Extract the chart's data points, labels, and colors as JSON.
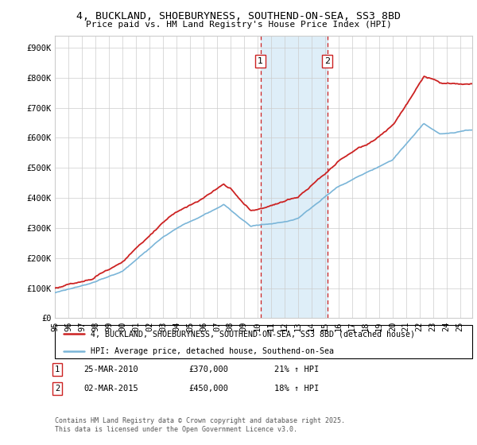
{
  "title_line1": "4, BUCKLAND, SHOEBURYNESS, SOUTHEND-ON-SEA, SS3 8BD",
  "title_line2": "Price paid vs. HM Land Registry's House Price Index (HPI)",
  "ylabel_ticks": [
    "£0",
    "£100K",
    "£200K",
    "£300K",
    "£400K",
    "£500K",
    "£600K",
    "£700K",
    "£800K",
    "£900K"
  ],
  "ytick_vals": [
    0,
    100000,
    200000,
    300000,
    400000,
    500000,
    600000,
    700000,
    800000,
    900000
  ],
  "ylim": [
    0,
    940000
  ],
  "xlim_start": 1995.0,
  "xlim_end": 2025.9,
  "sale1_x": 2010.23,
  "sale1_y": 370000,
  "sale1_label": "1",
  "sale1_date": "25-MAR-2010",
  "sale1_price": "£370,000",
  "sale1_hpi": "21% ↑ HPI",
  "sale2_x": 2015.17,
  "sale2_y": 450000,
  "sale2_label": "2",
  "sale2_date": "02-MAR-2015",
  "sale2_price": "£450,000",
  "sale2_hpi": "18% ↑ HPI",
  "legend_line1": "4, BUCKLAND, SHOEBURYNESS, SOUTHEND-ON-SEA, SS3 8BD (detached house)",
  "legend_line2": "HPI: Average price, detached house, Southend-on-Sea",
  "footer": "Contains HM Land Registry data © Crown copyright and database right 2025.\nThis data is licensed under the Open Government Licence v3.0.",
  "hpi_color": "#7ab5d8",
  "price_color": "#cc2222",
  "shading_color": "#deeef8",
  "vline_color": "#cc2222",
  "background_color": "#ffffff",
  "grid_color": "#cccccc"
}
